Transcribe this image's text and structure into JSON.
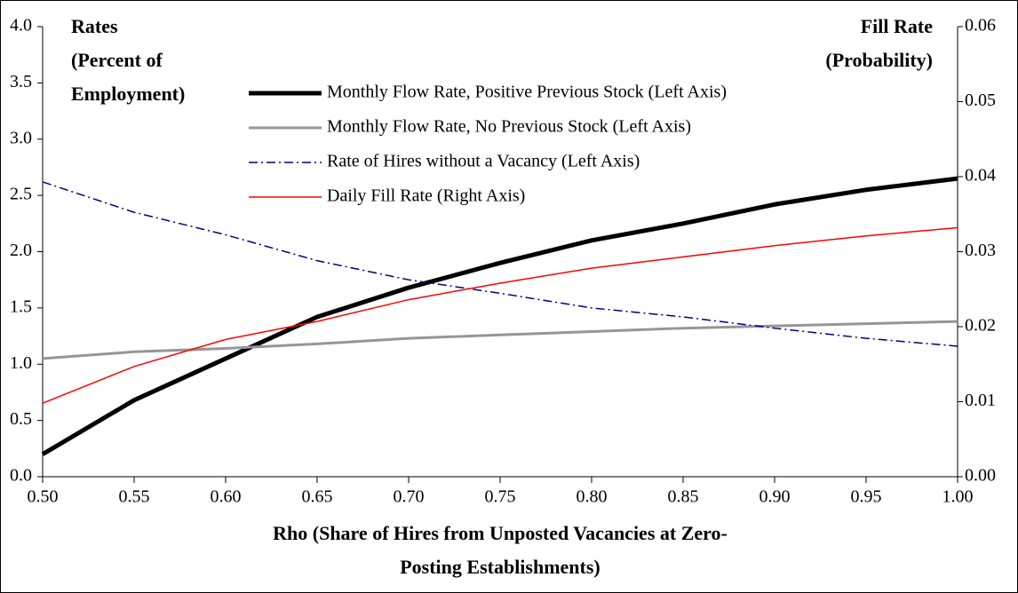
{
  "chart_data": {
    "type": "line",
    "ylabel": [
      "Rates",
      "(Percent of",
      "Employment)"
    ],
    "y2label": [
      "Fill Rate",
      "(Probability)"
    ],
    "xlabel": [
      "Rho (Share of Hires from Unposted Vacancies at Zero-",
      "Posting Establishments)"
    ],
    "x": [
      0.5,
      0.55,
      0.6,
      0.65,
      0.7,
      0.75,
      0.8,
      0.85,
      0.9,
      0.95,
      1.0
    ],
    "series": [
      {
        "name": "Monthly Flow Rate, Positive Previous Stock (Left Axis)",
        "color": "#000000",
        "values": [
          0.2,
          0.68,
          1.05,
          1.42,
          1.68,
          1.9,
          2.1,
          2.25,
          2.42,
          2.55,
          2.65
        ]
      },
      {
        "name": "Monthly Flow Rate, No Previous Stock (Left Axis)",
        "color": "#969696",
        "values": [
          1.05,
          1.11,
          1.14,
          1.18,
          1.23,
          1.26,
          1.29,
          1.32,
          1.34,
          1.36,
          1.38
        ]
      },
      {
        "name": "Rate of Hires without a Vacancy (Left Axis)",
        "color": "#000080",
        "values": [
          2.62,
          2.35,
          2.15,
          1.92,
          1.75,
          1.63,
          1.5,
          1.42,
          1.32,
          1.23,
          1.16
        ]
      },
      {
        "name": "Daily Fill Rate (Right Axis)",
        "color": "#ff0000",
        "axis": "y2",
        "values": [
          0.0098,
          0.0147,
          0.0183,
          0.0207,
          0.0236,
          0.0258,
          0.0278,
          0.0293,
          0.0308,
          0.0321,
          0.0332
        ]
      }
    ],
    "xlim": [
      0.5,
      1.0
    ],
    "xticks": [
      {
        "value": 0.5,
        "label": "0.50"
      },
      0.55,
      {
        "value": 0.6,
        "label": "0.60"
      },
      0.65,
      {
        "value": 0.7,
        "label": "0.70"
      },
      0.75,
      {
        "value": 0.8,
        "label": "0.80"
      },
      0.85,
      {
        "value": 0.9,
        "label": "0.90"
      },
      0.95,
      {
        "value": 1.0,
        "label": "1.00"
      }
    ],
    "ylim": [
      0,
      4
    ],
    "yticks": [
      {
        "value": 0,
        "label": "0.0"
      },
      0.5,
      {
        "value": 1,
        "label": "1.0"
      },
      1.5,
      {
        "value": 2,
        "label": "2.0"
      },
      2.5,
      {
        "value": 3,
        "label": "3.0"
      },
      3.5,
      {
        "value": 4,
        "label": "4.0"
      }
    ],
    "y2lim": [
      0,
      0.06
    ],
    "y2ticks": [
      {
        "value": 0,
        "label": "0.00"
      },
      {
        "value": 0.01,
        "label": "0.01"
      },
      {
        "value": 0.02,
        "label": "0.02"
      },
      {
        "value": 0.03,
        "label": "0.03"
      },
      {
        "value": 0.04,
        "label": "0.04"
      },
      {
        "value": 0.05,
        "label": "0.05"
      },
      {
        "value": 0.06,
        "label": "0.06"
      }
    ]
  }
}
